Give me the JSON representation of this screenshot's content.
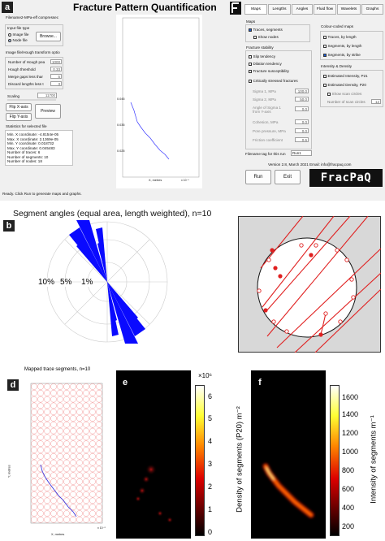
{
  "panels": {
    "a": "a",
    "b": "b",
    "c": "c",
    "d": "d",
    "e": "e",
    "f": "f"
  },
  "app": {
    "title": "Fracture Pattern Quantification",
    "filename_label": "Filename2-MPa-eff compressec",
    "input_file_type": "Input file type",
    "image_file": "Image file",
    "node_file": "Node file",
    "browse": "Browse...",
    "hough_label": "Image file/Hough transform optio",
    "hough_fields": [
      {
        "label": "Number of Hough pea",
        "value": "1000"
      },
      {
        "label": "Hough threshold",
        "value": "0.33"
      },
      {
        "label": "Merge gaps less thar",
        "value": "5"
      },
      {
        "label": "Discard lengths less t",
        "value": "3"
      }
    ],
    "scaling_label": "Scaling",
    "scaling_value": "11700",
    "flip_x": "Flip X-axis",
    "flip_y": "Flip Y-axis",
    "preview": "Preview",
    "stats_label": "Statistics for selected file",
    "stats": [
      "Min. X coordinate: -4.8154e-05",
      "Max. X coordinate: 2.1369e-05",
      "Min. Y coordinate: 0.018732",
      "Max. Y coordinate: 0.045483",
      "Number of traces: 6",
      "Number of segments: 10",
      "Number of nodes: 18"
    ],
    "status": "Ready.  Click Run to generate maps and graphs.",
    "tabs": [
      "Maps",
      "Lengths",
      "Angles",
      "Fluid flow",
      "Wavelets",
      "Graphs"
    ],
    "maps_label": "Maps",
    "traces_segments": "Traces, segments",
    "show_nodes": "Show nodes",
    "colour_maps_label": "Colour-coded maps",
    "colour_maps": [
      "Traces, by length",
      "Segments, by length",
      "Segments, by strike"
    ],
    "stability_label": "Fracture stability",
    "stability_items": [
      "Slip tendency",
      "Dilation tendency",
      "Fracture susceptibility",
      "Critically stressed fractures"
    ],
    "stress_fields": [
      {
        "label": "Sigma 1, MPa",
        "value": "100.0"
      },
      {
        "label": "Sigma 2, MPa",
        "value": "50.0"
      },
      {
        "label": "Angle of Sigma 1 from Y-axis",
        "value": "0.0"
      },
      {
        "label": "Cohesion, MPa",
        "value": "0.0"
      },
      {
        "label": "Pore pressure, MPa",
        "value": "0.0"
      },
      {
        "label": "Friction coefficient",
        "value": "0.6"
      }
    ],
    "intensity_label": "Intensity & Density",
    "estimated_intensity": "Estimated Intensity, P21",
    "estimated_density": "Estimated Density, P20",
    "show_scan_circles": "Show scan circles",
    "num_scan_circles_label": "Number of scan circles",
    "num_scan_circles": "12",
    "filename_tag_label": "Filename tag for this run",
    "filename_tag": "Run1",
    "version": "Version 2.8, March 2021   Email: info@fracpaq.com",
    "run": "Run",
    "exit": "Exit",
    "logo": "FracPaQ",
    "preview_xlabel": "X, metres",
    "preview_ylabel": "Y, metres",
    "preview_yticks": [
      "0.045",
      "0.04",
      "0.035",
      "0.03",
      "0.025",
      "0.02"
    ],
    "preview_xticks": [
      "-5",
      "0",
      "5",
      "10",
      "15",
      "20"
    ],
    "preview_xexp": "x 10⁻⁶"
  },
  "rose": {
    "title": "Segment angles (equal area, length weighted), n=10",
    "rings": [
      "10%",
      "5%",
      "1%"
    ]
  },
  "mapped": {
    "title": "Mapped trace segments, n=10",
    "xlabel": "X, metres",
    "ylabel": "Y, metres",
    "yticks": [
      "0.05",
      "0.045",
      "0.04",
      "0.035",
      "0.03",
      "0.025",
      "0.02",
      "0.015"
    ],
    "xticks": [
      "0",
      "5",
      "10",
      "15",
      "20"
    ],
    "xexp": "x 10⁻⁵"
  },
  "density_colorbar": {
    "exponent": "×10⁶",
    "ticks": [
      "6",
      "5",
      "4",
      "3",
      "2",
      "1",
      "0"
    ],
    "label": "Density of segments (P20) m⁻²"
  },
  "intensity_colorbar": {
    "ticks": [
      "1600",
      "1400",
      "1200",
      "1000",
      "800",
      "600",
      "400",
      "200"
    ],
    "label": "Intensity of segments m⁻¹"
  },
  "colors": {
    "segment_blue": "#2a2ae0",
    "rose_blue": "#0a0aff",
    "circle_red": "#e02020",
    "window_bg": "#f0f0f0"
  }
}
